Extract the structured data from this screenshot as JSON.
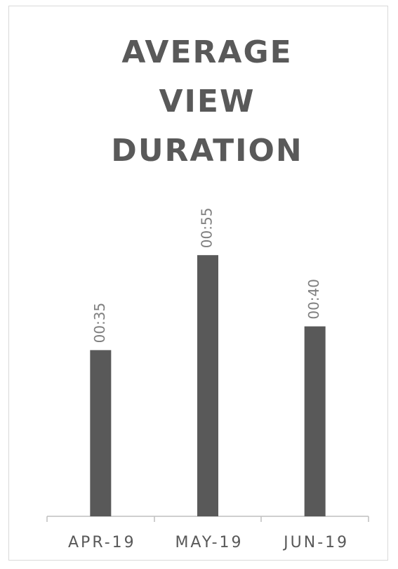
{
  "chart_data": {
    "type": "bar",
    "title": "AVERAGE VIEW DURATION",
    "categories": [
      "APR-19",
      "MAY-19",
      "JUN-19"
    ],
    "values": [
      35,
      55,
      40
    ],
    "value_labels": [
      "00:35",
      "00:55",
      "00:40"
    ],
    "color": "#595959"
  }
}
